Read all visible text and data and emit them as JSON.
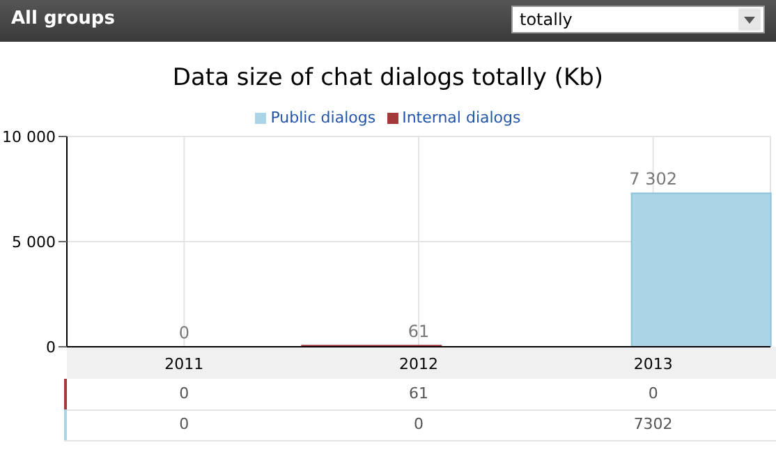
{
  "chart_data": {
    "type": "bar",
    "title": "Data size of chat dialogs totally (Kb)",
    "annotations": [
      "All groups",
      "totally",
      {
        "text": "0",
        "x": "2011",
        "y": 0
      },
      {
        "text": "61",
        "x": "2012",
        "y": 61
      },
      {
        "text": "7 302",
        "x": "2013",
        "y": 7302
      }
    ],
    "categories": [
      "2011",
      "2012",
      "2013"
    ],
    "series": [
      {
        "name": "Public dialogs",
        "color": "#a9d5e7",
        "values": [
          0,
          0,
          7302
        ]
      },
      {
        "name": "Internal dialogs",
        "color": "#a33a3a",
        "values": [
          0,
          61,
          0
        ]
      }
    ],
    "ylim": [
      0,
      10000
    ],
    "yticks": [
      0,
      {
        "value": 5000,
        "label": "5 000"
      },
      {
        "value": 10000,
        "label": "10 000"
      }
    ],
    "grid": true,
    "legend": "top",
    "data_labels": true
  }
}
